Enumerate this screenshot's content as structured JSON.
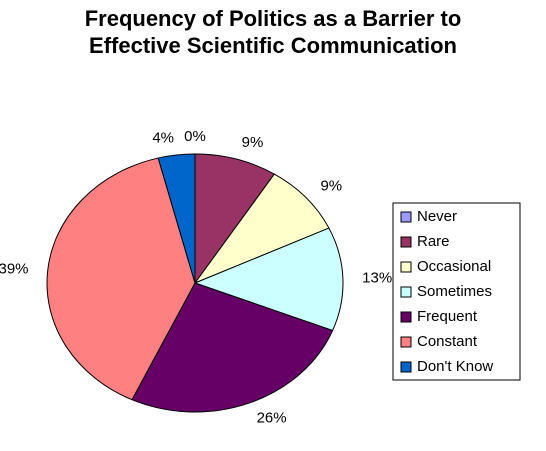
{
  "chart_data": {
    "type": "pie",
    "title": [
      "Frequency of Politics as a Barrier to",
      "Effective Scientific Communication"
    ],
    "categories": [
      "Never",
      "Rare",
      "Occasional",
      "Sometimes",
      "Frequent",
      "Constant",
      "Don't Know"
    ],
    "values": [
      0,
      9,
      9,
      13,
      26,
      39,
      4
    ],
    "value_labels": [
      "0%",
      "9%",
      "9%",
      "13%",
      "26%",
      "39%",
      "4%"
    ],
    "colors": [
      "#9999ff",
      "#993366",
      "#ffffcc",
      "#ccffff",
      "#660066",
      "#ff8080",
      "#0066cc"
    ],
    "legend": "right"
  }
}
